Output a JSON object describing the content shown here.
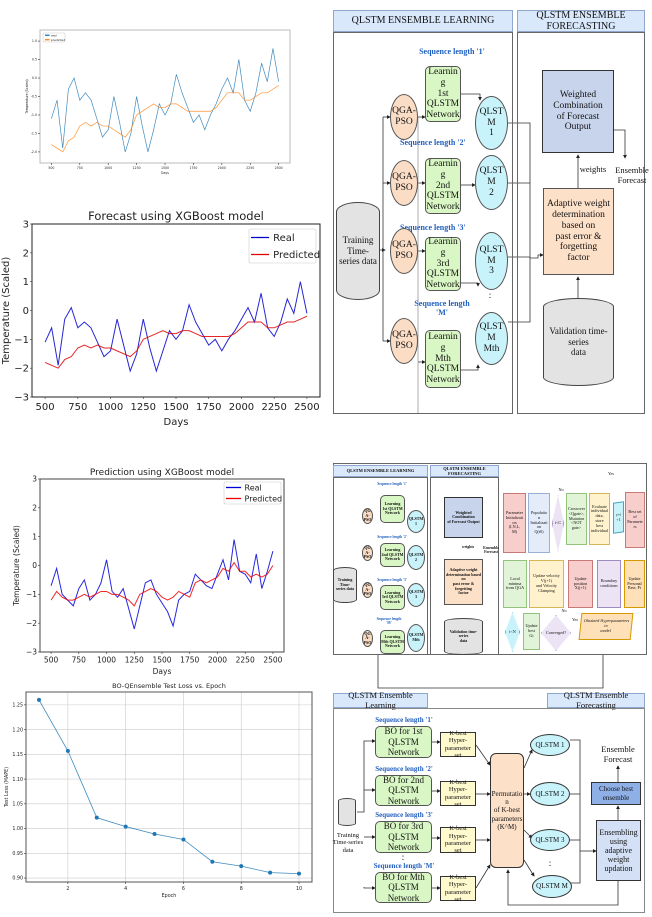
{
  "chart_data": [
    {
      "type": "line",
      "title": "",
      "xlabel": "Days",
      "ylabel": "Temperature (Scaled)",
      "xlim": [
        400,
        2600
      ],
      "ylim": [
        -2.3,
        1.3
      ],
      "xticks": [
        500,
        750,
        1000,
        1250,
        1500,
        1750,
        2000,
        2250,
        2500
      ],
      "xtick_labels": [
        "500",
        "750",
        "1000",
        "1250",
        "1500",
        "1750",
        "2000",
        "2250",
        "2500"
      ],
      "yticks": [
        -2.0,
        -1.5,
        -1.0,
        -0.5,
        0.0,
        0.5,
        1.0
      ],
      "ytick_labels": [
        "-2.0",
        "-1.5",
        "-1.0",
        "-0.5",
        "0.0",
        "0.5",
        "1.0"
      ],
      "grid": false,
      "legend": "top-left",
      "x": [
        500,
        550,
        600,
        650,
        700,
        750,
        800,
        850,
        900,
        950,
        1000,
        1050,
        1100,
        1150,
        1200,
        1250,
        1300,
        1350,
        1400,
        1450,
        1500,
        1550,
        1600,
        1650,
        1700,
        1750,
        1800,
        1850,
        1900,
        1950,
        2000,
        2050,
        2100,
        2150,
        2200,
        2250,
        2300,
        2350,
        2400,
        2450,
        2500
      ],
      "series": [
        {
          "name": "real",
          "color": "#1f77b4",
          "values": [
            -1.1,
            -0.6,
            -1.9,
            -0.3,
            0.0,
            -0.6,
            -0.4,
            -0.6,
            -1.1,
            -1.6,
            -1.4,
            -0.5,
            -1.2,
            -2.0,
            -1.5,
            -0.5,
            -1.3,
            -2.0,
            -1.4,
            -0.7,
            -1.0,
            -0.7,
            0.1,
            -0.4,
            -0.8,
            -1.2,
            -1.0,
            -1.4,
            -1.0,
            -0.7,
            -0.3,
            0.0,
            -0.4,
            0.5,
            -0.6,
            -0.9,
            -0.4,
            0.4,
            -0.1,
            0.8,
            -0.1
          ]
        },
        {
          "name": "predicted",
          "color": "#ff7f0e",
          "values": [
            -1.8,
            -1.9,
            -2.0,
            -1.7,
            -1.6,
            -1.3,
            -1.2,
            -1.3,
            -1.2,
            -1.3,
            -1.3,
            -1.4,
            -1.5,
            -1.6,
            -1.4,
            -1.0,
            -0.9,
            -0.8,
            -0.7,
            -0.8,
            -0.8,
            -0.7,
            -0.7,
            -0.8,
            -0.9,
            -0.9,
            -0.9,
            -0.9,
            -0.9,
            -0.8,
            -0.6,
            -0.4,
            -0.4,
            -0.4,
            -0.6,
            -0.6,
            -0.5,
            -0.4,
            -0.4,
            -0.3,
            -0.2
          ]
        }
      ]
    },
    {
      "type": "line",
      "title": "Forecast using XGBoost model",
      "xlabel": "Days",
      "ylabel": "Temperature (Scaled)",
      "xlim": [
        400,
        2600
      ],
      "ylim": [
        -3,
        3
      ],
      "xticks": [
        500,
        750,
        1000,
        1250,
        1500,
        1750,
        2000,
        2250,
        2500
      ],
      "xtick_labels": [
        "500",
        "750",
        "1000",
        "1250",
        "1500",
        "1750",
        "2000",
        "2250",
        "2500"
      ],
      "yticks": [
        -3,
        -2,
        -1,
        0,
        1,
        2,
        3
      ],
      "ytick_labels": [
        "−3",
        "−2",
        "−1",
        "0",
        "1",
        "2",
        "3"
      ],
      "grid": false,
      "legend": "top-right",
      "x": [
        500,
        550,
        600,
        650,
        700,
        750,
        800,
        850,
        900,
        950,
        1000,
        1050,
        1100,
        1150,
        1200,
        1250,
        1300,
        1350,
        1400,
        1450,
        1500,
        1550,
        1600,
        1650,
        1700,
        1750,
        1800,
        1850,
        1900,
        1950,
        2000,
        2050,
        2100,
        2150,
        2200,
        2250,
        2300,
        2350,
        2400,
        2450,
        2500
      ],
      "series": [
        {
          "name": "Real",
          "color": "#0000cc",
          "values": [
            -1.1,
            -0.6,
            -1.9,
            -0.3,
            0.1,
            -0.6,
            -0.4,
            -0.6,
            -1.1,
            -1.6,
            -1.4,
            -0.3,
            -1.2,
            -2.1,
            -1.5,
            -0.3,
            -1.3,
            -2.1,
            -1.4,
            -0.7,
            -1.0,
            -0.7,
            0.2,
            -0.4,
            -0.8,
            -1.2,
            -1.0,
            -1.4,
            -1.0,
            -0.7,
            -0.3,
            0.1,
            -0.4,
            0.6,
            -0.6,
            -0.9,
            -0.4,
            0.4,
            -0.1,
            1.0,
            -0.1
          ]
        },
        {
          "name": "Predicted",
          "color": "#e00000",
          "values": [
            -1.8,
            -1.9,
            -2.0,
            -1.7,
            -1.6,
            -1.3,
            -1.2,
            -1.3,
            -1.2,
            -1.3,
            -1.3,
            -1.4,
            -1.5,
            -1.6,
            -1.4,
            -1.0,
            -0.9,
            -0.8,
            -0.7,
            -0.8,
            -0.8,
            -0.7,
            -0.7,
            -0.8,
            -0.9,
            -0.9,
            -0.9,
            -0.9,
            -0.9,
            -0.8,
            -0.6,
            -0.4,
            -0.4,
            -0.4,
            -0.6,
            -0.6,
            -0.5,
            -0.4,
            -0.4,
            -0.3,
            -0.2
          ]
        }
      ]
    },
    {
      "type": "line",
      "title": "Prediction using XGBoost model",
      "xlabel": "Days",
      "ylabel": "Temperature (Scaled)",
      "xlim": [
        400,
        2600
      ],
      "ylim": [
        -3,
        3
      ],
      "xticks": [
        500,
        750,
        1000,
        1250,
        1500,
        1750,
        2000,
        2250,
        2500
      ],
      "xtick_labels": [
        "500",
        "750",
        "1000",
        "1250",
        "1500",
        "1750",
        "2000",
        "2250",
        "2500"
      ],
      "yticks": [
        -3,
        -2,
        -1,
        0,
        1,
        2,
        3
      ],
      "ytick_labels": [
        "−3",
        "−2",
        "−1",
        "0",
        "1",
        "2",
        "3"
      ],
      "grid": false,
      "legend": "top-right",
      "x": [
        500,
        550,
        600,
        650,
        700,
        750,
        800,
        850,
        900,
        950,
        1000,
        1050,
        1100,
        1150,
        1200,
        1250,
        1300,
        1350,
        1400,
        1450,
        1500,
        1550,
        1600,
        1650,
        1700,
        1750,
        1800,
        1850,
        1900,
        1950,
        2000,
        2050,
        2100,
        2150,
        2200,
        2250,
        2300,
        2350,
        2400,
        2450,
        2500
      ],
      "series": [
        {
          "name": "Real",
          "color": "#0000dd",
          "values": [
            -0.7,
            -0.1,
            -1.0,
            -1.2,
            -1.4,
            -0.8,
            -0.5,
            -1.2,
            -1.0,
            -0.6,
            0.2,
            -0.9,
            -1.1,
            -0.8,
            -1.5,
            -2.2,
            -1.4,
            -0.6,
            -0.5,
            -1.0,
            -1.3,
            -1.6,
            -2.1,
            -1.2,
            -1.0,
            -0.9,
            -0.3,
            -0.5,
            -0.7,
            -0.8,
            -0.3,
            0.2,
            -0.5,
            0.9,
            -0.2,
            -0.3,
            -0.6,
            0.4,
            -0.8,
            -0.2,
            0.5
          ]
        },
        {
          "name": "Predicted",
          "color": "#ee0000",
          "values": [
            -1.2,
            -0.9,
            -1.1,
            -1.2,
            -1.2,
            -1.1,
            -1.0,
            -1.1,
            -1.0,
            -0.9,
            -0.9,
            -1.0,
            -1.0,
            -1.1,
            -1.2,
            -1.4,
            -1.0,
            -0.9,
            -0.8,
            -0.9,
            -1.1,
            -1.2,
            -1.1,
            -0.9,
            -1.0,
            -1.1,
            -0.6,
            -0.5,
            -0.6,
            -0.5,
            -0.4,
            -0.1,
            -0.2,
            0.1,
            -0.2,
            -0.2,
            -0.4,
            -0.3,
            -0.4,
            -0.3,
            0.0
          ]
        }
      ]
    },
    {
      "type": "line",
      "title": "BO-QEnsemble Test Loss vs. Epoch",
      "xlabel": "Epoch",
      "ylabel": "Test Loss (MAPE)",
      "xlim": [
        0.55,
        10.45
      ],
      "ylim": [
        0.892,
        1.276
      ],
      "xticks": [
        2,
        4,
        6,
        8,
        10
      ],
      "xtick_labels": [
        "2",
        "4",
        "6",
        "8",
        "10"
      ],
      "yticks": [
        0.9,
        0.95,
        1.0,
        1.05,
        1.1,
        1.15,
        1.2,
        1.25
      ],
      "ytick_labels": [
        "0.90",
        "0.95",
        "1.00",
        "1.05",
        "1.10",
        "1.15",
        "1.20",
        "1.25"
      ],
      "grid": true,
      "markers": true,
      "x": [
        1,
        2,
        3,
        4,
        5,
        6,
        7,
        8,
        9,
        10
      ],
      "series": [
        {
          "color": "#1f77b4",
          "values": [
            1.26,
            1.157,
            1.022,
            1.004,
            0.989,
            0.978,
            0.933,
            0.924,
            0.911,
            0.909
          ]
        }
      ]
    }
  ],
  "diagram_top": {
    "header_left": "QLSTM ENSEMBLE LEARNING",
    "header_right": "QLSTM ENSEMBLE FORECASTING",
    "seq_labels": [
      "Sequence length '1'",
      "Sequence length '2'",
      "Sequence length '3'",
      "Sequence length\n'M'"
    ],
    "qga": [
      "QGA-\nPSO",
      "QGA-\nPSO",
      "QGA-\nPSO",
      "QGA-\nPSO"
    ],
    "learning": [
      "Learning\n1st QLSTM\nNetwork",
      "Learning\n2nd QLSTM\nNetwork",
      "Learning\n3rd QLSTM\nNetwork",
      "Learning\nMth QLSTM\nNetwork"
    ],
    "qlstm": [
      "QLSTM\n1",
      "QLSTM\n2",
      "QLSTM\n3",
      "QLSTM\nMth"
    ],
    "training": "Training Time-\nseries data",
    "weighted": "Weighted Combination\nof Forecast Output",
    "adaptive": "Adaptive weight\ndetermination based on\npast error & forgetting\nfactor",
    "validation": "Validation time-series\ndata",
    "weights": "weights",
    "ensemble_forecast": "Ensemble\nForecast",
    "ellipsis": ":"
  },
  "diagram_mid": {
    "header_left": "QLSTM ENSEMBLE LEARNING",
    "header_right": "QLSTM ENSEMBLE FORECASTING",
    "seq_labels": [
      "Sequence length '1'",
      "Sequence length '2'",
      "Sequence length '3'",
      "Sequence length\n'M'"
    ],
    "qga": [
      "QGA-\nPSO",
      "QGA-\nPSO",
      "QGA-\nPSO",
      "QGA-\nPSO"
    ],
    "learning": [
      "Learning\n1st QLSTM\nNetwork",
      "Learning\n2nd QLSTM\nNetwork",
      "Learning\n3rd QLSTM\nNetwork",
      "Learning\nMth QLSTM\nNetwork"
    ],
    "qlstm": [
      "QLSTM\n1",
      "QLSTM\n2",
      "QLSTM\n3",
      "QLSTM\nMth"
    ],
    "training": "Training Time-\nseries data",
    "weighted": "Weighted Combination\nof Forecast Output",
    "adaptive": "Adaptive weight\ndetermination based on\npast error & forgetting\nfactor",
    "validation": "Validation time-series\ndata",
    "weights": "weights",
    "ensemble_forecast": "Ensemble\nForecast",
    "flow": {
      "param_init": "Parameter\nInitialization\n(I,N,L,\nM)",
      "pop_init": "Population\nInitialization\nQ(t0)",
      "t_less_c": "t<C",
      "crossover": "Crossover\n<Qgate>,\nMutation\n<NOT\ngate>",
      "evaluate": "Evaluate\nindividual\ndata, store\nbest\nindividual",
      "t_increment": "t=t\n+1",
      "best_params": "Best set of\nParameters",
      "local_minima": "Local\nminima\nfrom QGA",
      "update_velocity": "Update velocity\nV(j+1)\nand Velocity\nClamping",
      "update_position": "Update\nposition\nX(j+1)",
      "boundary": "Boundary\nconditions",
      "personal_best": "Update\nPersonal\nBest; Pi",
      "i_less_n": "i<N",
      "update_best": "Update\nbest\nGi",
      "converged": "Converged?",
      "obtained": "Obtained Hyperparameters to\nmodel",
      "yes_top": "Yes",
      "no_top": "No",
      "no_mid": "No",
      "yes_bottom": "Yes"
    }
  },
  "diagram_bottom": {
    "header_left": "QLSTM Ensemble Learning",
    "header_right": "QLSTM Ensemble Forecasting",
    "seq_labels": [
      "Sequence length '1'",
      "Sequence length '2'",
      "Sequence length '3'",
      "Sequence length 'M'"
    ],
    "bo": [
      "BO for 1st\nQLSTM Network",
      "BO for 2nd\nQLSTM Network",
      "BO for 3rd\nQLSTM Network",
      "BO for Mth\nQLSTM Network"
    ],
    "kbest": [
      "K-best Hyper-\nparameter set",
      "K-best Hyper-\nparameter set",
      "K-best Hyper-\nparameter set",
      "K-best Hyper-\nparameter set"
    ],
    "permutation": "Permutation\nof K-best\nparameters\n(K^M)",
    "qlstm": [
      "QLSTM 1",
      "QLSTM 2",
      "QLSTM 3",
      "QLSTM M"
    ],
    "training": "Training\nTime-series\ndata",
    "ensemble_forecast": "Ensemble\nForecast",
    "choose_best": "Choose best\nensemble",
    "ensembling": "Ensembling\nusing adaptive\nweight\nupdation",
    "ellipsis": ":"
  }
}
